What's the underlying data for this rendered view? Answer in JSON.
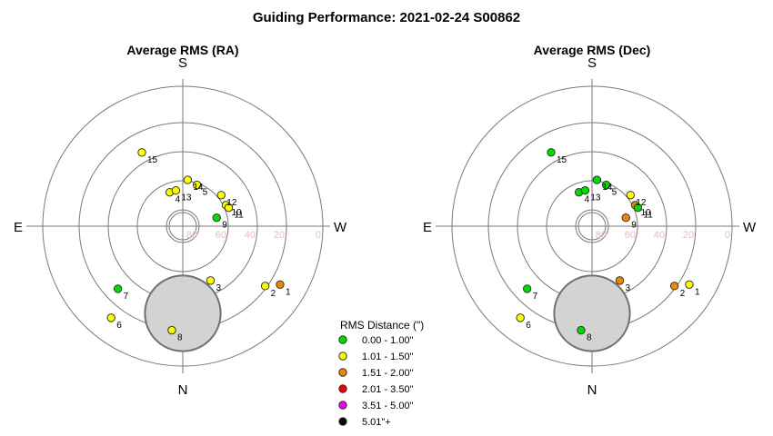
{
  "title": "Guiding Performance: 2021-02-24 S00862",
  "legend": {
    "title": "RMS Distance (\")",
    "entries": [
      {
        "label": "0.00 - 1.00\"",
        "color": "#00dd00"
      },
      {
        "label": "1.01 - 1.50\"",
        "color": "#ffff00"
      },
      {
        "label": "1.51 - 2.00\"",
        "color": "#ee8800"
      },
      {
        "label": "2.01 - 3.50\"",
        "color": "#ee0000"
      },
      {
        "label": "3.51 - 5.00\"",
        "color": "#ee00ee"
      },
      {
        "label": "5.01\"+",
        "color": "#000000"
      }
    ]
  },
  "chart_data": [
    {
      "type": "scatter",
      "projection": "polar-sky",
      "title": "Average RMS (RA)",
      "direction_labels": {
        "top": "S",
        "bottom": "N",
        "left": "E",
        "right": "W"
      },
      "altitude_rings": [
        80,
        60,
        40,
        20,
        0
      ],
      "altitude_tick_labels": [
        "80",
        "60",
        "40",
        "20",
        "0"
      ],
      "moon": {
        "altitude": 30,
        "azimuth": 0,
        "angular_radius_deg": 13
      },
      "points": [
        {
          "label": "1",
          "azimuth": 301,
          "altitude": 12,
          "color": "#ee8800"
        },
        {
          "label": "2",
          "azimuth": 306,
          "altitude": 20,
          "color": "#ffff00"
        },
        {
          "label": "3",
          "azimuth": 333,
          "altitude": 48,
          "color": "#ffff00"
        },
        {
          "label": "4",
          "azimuth": 159,
          "altitude": 65,
          "color": "#ffff00"
        },
        {
          "label": "5",
          "azimuth": 199,
          "altitude": 60,
          "color": "#ffff00"
        },
        {
          "label": "6",
          "azimuth": 38,
          "altitude": 10,
          "color": "#ffff00"
        },
        {
          "label": "7",
          "azimuth": 46,
          "altitude": 28,
          "color": "#00dd00"
        },
        {
          "label": "8",
          "azimuth": 6,
          "altitude": 18,
          "color": "#ffff00"
        },
        {
          "label": "9",
          "azimuth": 256,
          "altitude": 66,
          "color": "#00dd00"
        },
        {
          "label": "10",
          "azimuth": 244,
          "altitude": 57,
          "color": "#ffff00"
        },
        {
          "label": "11",
          "azimuth": 248,
          "altitude": 56,
          "color": "#ffff00"
        },
        {
          "label": "12",
          "azimuth": 231,
          "altitude": 56,
          "color": "#ffff00"
        },
        {
          "label": "13",
          "azimuth": 169,
          "altitude": 65,
          "color": "#ffff00"
        },
        {
          "label": "14",
          "azimuth": 186,
          "altitude": 58,
          "color": "#ffff00"
        },
        {
          "label": "15",
          "azimuth": 151,
          "altitude": 32,
          "color": "#ffff00"
        }
      ]
    },
    {
      "type": "scatter",
      "projection": "polar-sky",
      "title": "Average RMS (Dec)",
      "direction_labels": {
        "top": "S",
        "bottom": "N",
        "left": "E",
        "right": "W"
      },
      "altitude_rings": [
        80,
        60,
        40,
        20,
        0
      ],
      "altitude_tick_labels": [
        "80",
        "60",
        "40",
        "20",
        "0"
      ],
      "moon": {
        "altitude": 30,
        "azimuth": 0,
        "angular_radius_deg": 13
      },
      "points": [
        {
          "label": "1",
          "azimuth": 301,
          "altitude": 12,
          "color": "#ffff00"
        },
        {
          "label": "2",
          "azimuth": 306,
          "altitude": 20,
          "color": "#ee8800"
        },
        {
          "label": "3",
          "azimuth": 333,
          "altitude": 48,
          "color": "#ee8800"
        },
        {
          "label": "4",
          "azimuth": 159,
          "altitude": 65,
          "color": "#00dd00"
        },
        {
          "label": "5",
          "azimuth": 199,
          "altitude": 60,
          "color": "#00dd00"
        },
        {
          "label": "6",
          "azimuth": 38,
          "altitude": 10,
          "color": "#ffff00"
        },
        {
          "label": "7",
          "azimuth": 46,
          "altitude": 28,
          "color": "#00dd00"
        },
        {
          "label": "8",
          "azimuth": 6,
          "altitude": 18,
          "color": "#00dd00"
        },
        {
          "label": "9",
          "azimuth": 256,
          "altitude": 66,
          "color": "#ee8800"
        },
        {
          "label": "10",
          "azimuth": 244,
          "altitude": 57,
          "color": "#ee8800"
        },
        {
          "label": "11",
          "azimuth": 248,
          "altitude": 56,
          "color": "#00dd00"
        },
        {
          "label": "12",
          "azimuth": 231,
          "altitude": 56,
          "color": "#ffff00"
        },
        {
          "label": "13",
          "azimuth": 169,
          "altitude": 65,
          "color": "#00dd00"
        },
        {
          "label": "14",
          "azimuth": 186,
          "altitude": 58,
          "color": "#00dd00"
        },
        {
          "label": "15",
          "azimuth": 151,
          "altitude": 32,
          "color": "#00dd00"
        }
      ]
    }
  ]
}
